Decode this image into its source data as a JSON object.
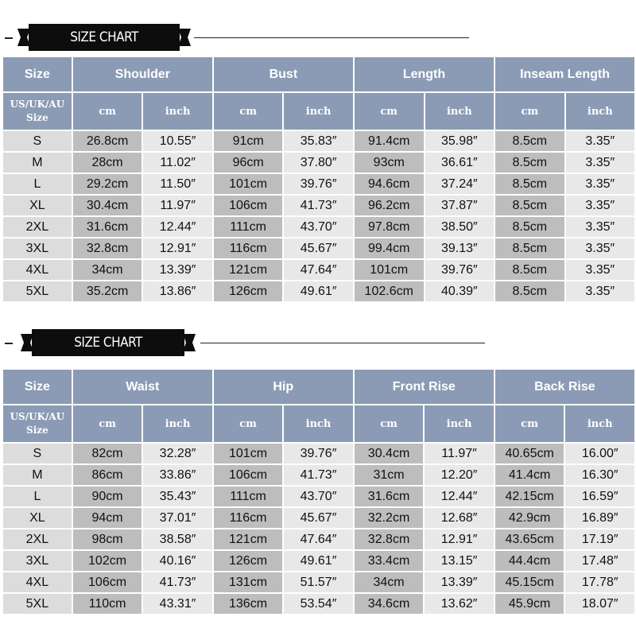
{
  "charts": [
    {
      "banner": "SIZE CHART",
      "groups": [
        "Shoulder",
        "Bust",
        "Length",
        "Inseam Length"
      ],
      "size_header": "Size",
      "size_sub": [
        "US/UK/AU",
        "Size"
      ],
      "unit_cm": "cm",
      "unit_inch": "inch",
      "rows": [
        {
          "size": "S",
          "vals": [
            "26.8cm",
            "10.55″",
            "91cm",
            "35.83″",
            "91.4cm",
            "35.98″",
            "8.5cm",
            "3.35″"
          ]
        },
        {
          "size": "M",
          "vals": [
            "28cm",
            "11.02″",
            "96cm",
            "37.80″",
            "93cm",
            "36.61″",
            "8.5cm",
            "3.35″"
          ]
        },
        {
          "size": "L",
          "vals": [
            "29.2cm",
            "11.50″",
            "101cm",
            "39.76″",
            "94.6cm",
            "37.24″",
            "8.5cm",
            "3.35″"
          ]
        },
        {
          "size": "XL",
          "vals": [
            "30.4cm",
            "11.97″",
            "106cm",
            "41.73″",
            "96.2cm",
            "37.87″",
            "8.5cm",
            "3.35″"
          ]
        },
        {
          "size": "2XL",
          "vals": [
            "31.6cm",
            "12.44″",
            "111cm",
            "43.70″",
            "97.8cm",
            "38.50″",
            "8.5cm",
            "3.35″"
          ]
        },
        {
          "size": "3XL",
          "vals": [
            "32.8cm",
            "12.91″",
            "116cm",
            "45.67″",
            "99.4cm",
            "39.13″",
            "8.5cm",
            "3.35″"
          ]
        },
        {
          "size": "4XL",
          "vals": [
            "34cm",
            "13.39″",
            "121cm",
            "47.64″",
            "101cm",
            "39.76″",
            "8.5cm",
            "3.35″"
          ]
        },
        {
          "size": "5XL",
          "vals": [
            "35.2cm",
            "13.86″",
            "126cm",
            "49.61″",
            "102.6cm",
            "40.39″",
            "8.5cm",
            "3.35″"
          ]
        }
      ]
    },
    {
      "banner": "SIZE CHART",
      "groups": [
        "Waist",
        "Hip",
        "Front Rise",
        "Back Rise"
      ],
      "size_header": "Size",
      "size_sub": [
        "US/UK/AU",
        "Size"
      ],
      "unit_cm": "cm",
      "unit_inch": "inch",
      "rows": [
        {
          "size": "S",
          "vals": [
            "82cm",
            "32.28″",
            "101cm",
            "39.76″",
            "30.4cm",
            "11.97″",
            "40.65cm",
            "16.00″"
          ]
        },
        {
          "size": "M",
          "vals": [
            "86cm",
            "33.86″",
            "106cm",
            "41.73″",
            "31cm",
            "12.20″",
            "41.4cm",
            "16.30″"
          ]
        },
        {
          "size": "L",
          "vals": [
            "90cm",
            "35.43″",
            "111cm",
            "43.70″",
            "31.6cm",
            "12.44″",
            "42.15cm",
            "16.59″"
          ]
        },
        {
          "size": "XL",
          "vals": [
            "94cm",
            "37.01″",
            "116cm",
            "45.67″",
            "32.2cm",
            "12.68″",
            "42.9cm",
            "16.89″"
          ]
        },
        {
          "size": "2XL",
          "vals": [
            "98cm",
            "38.58″",
            "121cm",
            "47.64″",
            "32.8cm",
            "12.91″",
            "43.65cm",
            "17.19″"
          ]
        },
        {
          "size": "3XL",
          "vals": [
            "102cm",
            "40.16″",
            "126cm",
            "49.61″",
            "33.4cm",
            "13.15″",
            "44.4cm",
            "17.48″"
          ]
        },
        {
          "size": "4XL",
          "vals": [
            "106cm",
            "41.73″",
            "131cm",
            "51.57″",
            "34cm",
            "13.39″",
            "45.15cm",
            "17.78″"
          ]
        },
        {
          "size": "5XL",
          "vals": [
            "110cm",
            "43.31″",
            "136cm",
            "53.54″",
            "34.6cm",
            "13.62″",
            "45.9cm",
            "18.07″"
          ]
        }
      ]
    }
  ],
  "colors": {
    "header_bg": "#8b9bb5",
    "size_cell_bg": "#dcdcdc",
    "dark_cell_bg": "#bdbdbd",
    "light_cell_bg": "#e8e8e8",
    "banner_bg": "#0d0d0d"
  }
}
